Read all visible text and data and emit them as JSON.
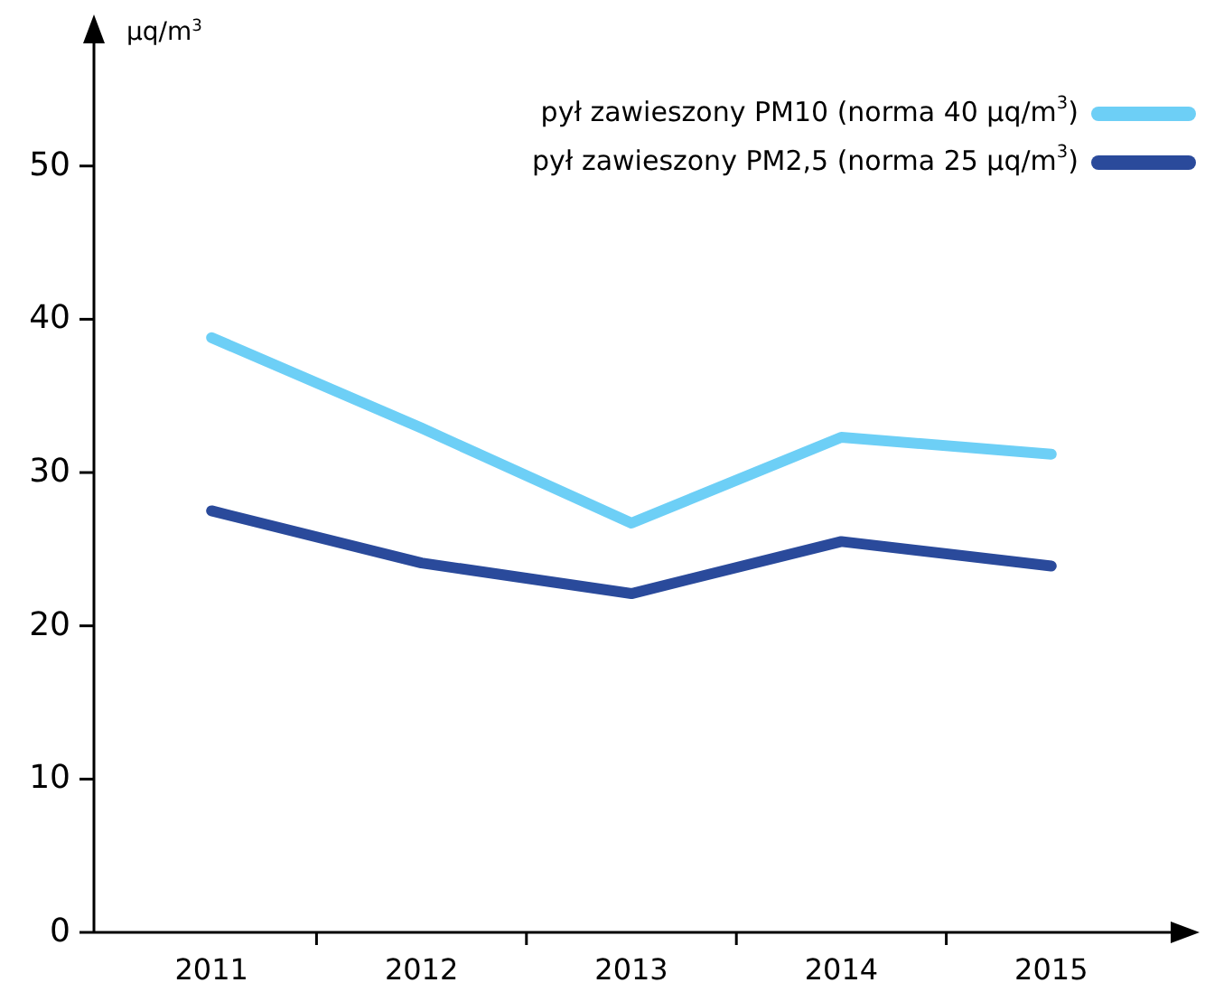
{
  "chart_data": {
    "type": "line",
    "ylabel": "μq/m$^{3}$",
    "categories": [
      "2011",
      "2012",
      "2013",
      "2014",
      "2015"
    ],
    "series": [
      {
        "name": "pył zawieszony PM10  (norma 40 μq/m$^{3}$)",
        "color": "#6dcff6",
        "values": [
          38.8,
          32.9,
          26.7,
          32.3,
          31.2
        ]
      },
      {
        "name": "pył zawieszony PM2,5  (norma 25 μq/m$^{3}$)",
        "color": "#2a4a9b",
        "values": [
          27.5,
          24.1,
          22.1,
          25.5,
          23.9
        ]
      }
    ],
    "ylim": [
      0,
      58
    ],
    "yticks": [
      0,
      10,
      20,
      30,
      40,
      50
    ],
    "grid": false,
    "legend": "top right",
    "marker": "none",
    "line_style": "solid"
  }
}
